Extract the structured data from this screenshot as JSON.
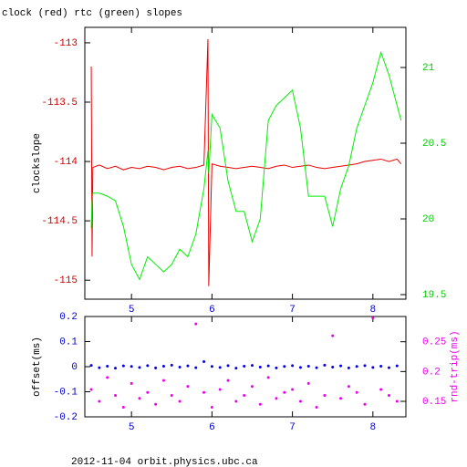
{
  "chart_data": [
    {
      "type": "line",
      "title": "clock (red) rtc (green) slopes",
      "ylabel": "clockslope",
      "xlim": [
        4.42,
        8.41
      ],
      "xticks": [
        5,
        6,
        7,
        8
      ],
      "x_color": "#0000cc",
      "ylim": [
        -115.16,
        -112.87
      ],
      "yticks": [
        -113,
        -113.5,
        -114,
        -114.5,
        -115
      ],
      "y_color": "#cc0000",
      "y2lim": [
        19.47,
        21.265
      ],
      "y2ticks": [
        21,
        20.5,
        20,
        19.5
      ],
      "y2_color": "#00cc00",
      "x": [
        4.5,
        4.51,
        4.52,
        4.6,
        4.7,
        4.8,
        4.9,
        5.0,
        5.1,
        5.2,
        5.3,
        5.4,
        5.5,
        5.6,
        5.7,
        5.8,
        5.9,
        5.95,
        5.96,
        6.0,
        6.1,
        6.2,
        6.3,
        6.4,
        6.5,
        6.6,
        6.7,
        6.8,
        6.9,
        7.0,
        7.1,
        7.2,
        7.3,
        7.4,
        7.5,
        7.6,
        7.7,
        7.8,
        7.9,
        8.0,
        8.1,
        8.2,
        8.3,
        8.35
      ],
      "series": [
        {
          "name": "clock",
          "color": "#ee0000",
          "axis": "y",
          "values": [
            -113.2,
            -114.8,
            -114.05,
            -114.03,
            -114.06,
            -114.04,
            -114.07,
            -114.05,
            -114.06,
            -114.04,
            -114.05,
            -114.07,
            -114.05,
            -114.04,
            -114.06,
            -114.05,
            -114.03,
            -112.97,
            -115.05,
            -114.02,
            -114.04,
            -114.05,
            -114.06,
            -114.05,
            -114.04,
            -114.05,
            -114.06,
            -114.04,
            -114.03,
            -114.05,
            -114.04,
            -114.03,
            -114.05,
            -114.06,
            -114.05,
            -114.04,
            -114.03,
            -114.02,
            -114.0,
            -113.99,
            -113.98,
            -114.0,
            -113.98,
            -114.02
          ]
        },
        {
          "name": "rtc",
          "color": "#00ee00",
          "axis": "y2",
          "values": [
            19.94,
            20.1,
            20.17,
            20.17,
            20.15,
            20.12,
            19.95,
            19.7,
            19.6,
            19.75,
            19.7,
            19.65,
            19.7,
            19.8,
            19.75,
            19.9,
            20.2,
            20.45,
            20.3,
            20.69,
            20.6,
            20.25,
            20.05,
            20.05,
            19.85,
            20.0,
            20.65,
            20.75,
            20.8,
            20.85,
            20.6,
            20.15,
            20.15,
            20.15,
            19.95,
            20.2,
            20.35,
            20.6,
            20.75,
            20.9,
            21.1,
            20.95,
            20.75,
            20.65
          ]
        }
      ]
    },
    {
      "type": "scatter",
      "ylabel": "offset(ms)",
      "y2label": "rnd-trip(ms)",
      "xlim": [
        4.42,
        8.41
      ],
      "xticks": [
        5,
        6,
        7,
        8
      ],
      "x_color": "#0000cc",
      "ylim": [
        -0.2,
        0.2
      ],
      "yticks": [
        0.2,
        0.1,
        0,
        -0.1,
        -0.2
      ],
      "y_color": "#0000cc",
      "y2lim": [
        0.124,
        0.2924
      ],
      "y2ticks": [
        0.25,
        0.2,
        0.15
      ],
      "y2_color": "#ee00ee",
      "x": [
        4.5,
        4.6,
        4.7,
        4.8,
        4.9,
        5.0,
        5.1,
        5.2,
        5.3,
        5.4,
        5.5,
        5.6,
        5.7,
        5.8,
        5.9,
        6.0,
        6.1,
        6.2,
        6.3,
        6.4,
        6.5,
        6.6,
        6.7,
        6.8,
        6.9,
        7.0,
        7.1,
        7.2,
        7.3,
        7.4,
        7.5,
        7.6,
        7.7,
        7.8,
        7.9,
        8.0,
        8.1,
        8.2,
        8.3
      ],
      "series": [
        {
          "name": "offset",
          "color": "#0000ee",
          "axis": "y",
          "values": [
            0.005,
            -0.004,
            0.002,
            -0.006,
            0.003,
            0.001,
            -0.003,
            0.004,
            -0.005,
            0.002,
            0.006,
            -0.002,
            0.003,
            -0.004,
            0.02,
            0.001,
            -0.003,
            0.004,
            -0.006,
            0.002,
            0.005,
            -0.002,
            0.003,
            -0.005,
            0.001,
            0.004,
            -0.003,
            0.002,
            -0.004,
            0.006,
            -0.002,
            0.003,
            -0.005,
            0.001,
            0.004,
            -0.003,
            0.002,
            -0.004,
            0.003
          ]
        },
        {
          "name": "rnd-trip",
          "color": "#ee00ee",
          "axis": "y2",
          "values": [
            0.17,
            0.15,
            0.19,
            0.16,
            0.14,
            0.18,
            0.155,
            0.165,
            0.145,
            0.185,
            0.16,
            0.15,
            0.175,
            0.28,
            0.165,
            0.14,
            0.17,
            0.185,
            0.15,
            0.16,
            0.175,
            0.145,
            0.19,
            0.155,
            0.165,
            0.17,
            0.15,
            0.18,
            0.14,
            0.16,
            0.26,
            0.155,
            0.175,
            0.165,
            0.145,
            0.29,
            0.17,
            0.16,
            0.15
          ]
        }
      ]
    }
  ],
  "footer": "2012-11-04 orbit.physics.ubc.ca"
}
